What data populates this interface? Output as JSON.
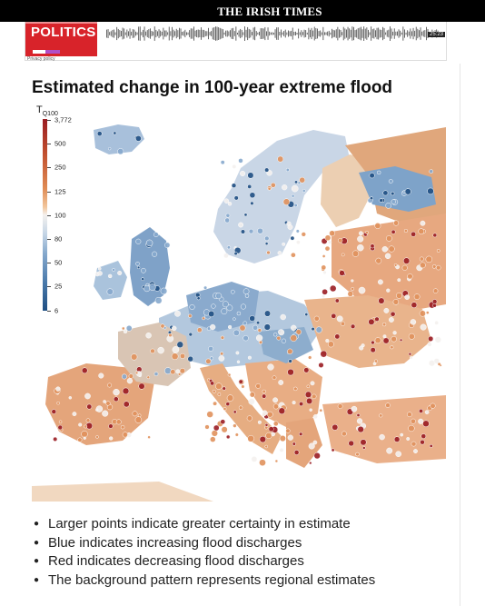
{
  "masthead": {
    "title": "THE IRISH TIMES"
  },
  "player": {
    "podcast_name": "POLITICS",
    "privacy_link": "Privacy policy",
    "duration": "25:23"
  },
  "article": {
    "figure_heading": "Estimated change in 100-year extreme flood"
  },
  "legend": {
    "symbol": "T",
    "subscript": "Q100",
    "ticks": [
      "3,772",
      "500",
      "250",
      "125",
      "100",
      "80",
      "50",
      "25",
      "6"
    ]
  },
  "bullets": [
    "Larger points indicate greater certainty in estimate",
    "Blue indicates increasing flood discharges",
    "Red indicates decreasing flood discharges",
    "The background pattern represents regional estimates"
  ],
  "colors": {
    "decrease_strong": "#9a1c22",
    "decrease": "#e0915c",
    "neutral": "#f4f1ee",
    "increase": "#86a9cd",
    "increase_strong": "#1f4f83",
    "brand_red": "#d8232a"
  }
}
